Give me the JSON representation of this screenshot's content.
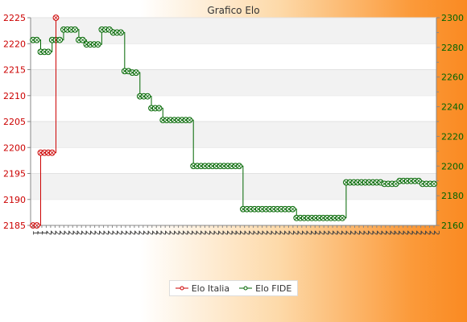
{
  "chart_data": {
    "type": "line",
    "title": "Grafico Elo",
    "y_left": {
      "range": [
        2185,
        2225
      ],
      "ticks": [
        2185,
        2190,
        2195,
        2200,
        2205,
        2210,
        2215,
        2220,
        2225
      ],
      "color": "#cc0000"
    },
    "y_right": {
      "range": [
        2160,
        2300
      ],
      "ticks": [
        2160,
        2180,
        2200,
        2220,
        2240,
        2260,
        2280,
        2300
      ],
      "color": "#006600"
    },
    "x_tick_label_prefixes": [
      "1",
      "1",
      "1",
      "2",
      "2",
      "2",
      "2",
      "2",
      "2",
      "2",
      "2",
      "2",
      "2",
      "2",
      "2",
      "2",
      "2",
      "2",
      "2",
      "2",
      "2",
      "2",
      "2",
      "2",
      "2",
      "2",
      "2",
      "2",
      "2",
      "2",
      "2",
      "2",
      "2",
      "2",
      "2",
      "2",
      "2",
      "2",
      "2",
      "2",
      "2",
      "2",
      "2",
      "2",
      "2",
      "2",
      "2",
      "2",
      "2",
      "2",
      "2",
      "2",
      "2",
      "2",
      "2",
      "2",
      "2",
      "2",
      "2",
      "2",
      "2",
      "2",
      "2",
      "2",
      "2",
      "2",
      "2",
      "2",
      "2",
      "2",
      "2",
      "2",
      "2",
      "2",
      "2",
      "2",
      "2",
      "2",
      "2",
      "2",
      "2",
      "2",
      "2",
      "2",
      "2",
      "2",
      "2",
      "2",
      "2",
      "2",
      "2",
      "2"
    ],
    "legend_position": "bottom",
    "series": [
      {
        "name": "Elo Italia",
        "axis": "left",
        "color": "#cc0000",
        "values": [
          2185,
          2185,
          2199,
          2199,
          2199,
          2199,
          2225
        ]
      },
      {
        "name": "Elo FIDE",
        "axis": "right",
        "color": "#006600",
        "values": [
          2285,
          2285,
          2277,
          2277,
          2277,
          2285,
          2285,
          2285,
          2292,
          2292,
          2292,
          2292,
          2285,
          2285,
          2282,
          2282,
          2282,
          2282,
          2292,
          2292,
          2292,
          2290,
          2290,
          2290,
          2264,
          2264,
          2263,
          2263,
          2247,
          2247,
          2247,
          2239,
          2239,
          2239,
          2231,
          2231,
          2231,
          2231,
          2231,
          2231,
          2231,
          2231,
          2200,
          2200,
          2200,
          2200,
          2200,
          2200,
          2200,
          2200,
          2200,
          2200,
          2200,
          2200,
          2200,
          2171,
          2171,
          2171,
          2171,
          2171,
          2171,
          2171,
          2171,
          2171,
          2171,
          2171,
          2171,
          2171,
          2171,
          2165,
          2165,
          2165,
          2165,
          2165,
          2165,
          2165,
          2165,
          2165,
          2165,
          2165,
          2165,
          2165,
          2189,
          2189,
          2189,
          2189,
          2189,
          2189,
          2189,
          2189,
          2189,
          2189,
          2188,
          2188,
          2188,
          2188,
          2190,
          2190,
          2190,
          2190,
          2190,
          2190,
          2188,
          2188,
          2188,
          2188
        ]
      }
    ]
  }
}
